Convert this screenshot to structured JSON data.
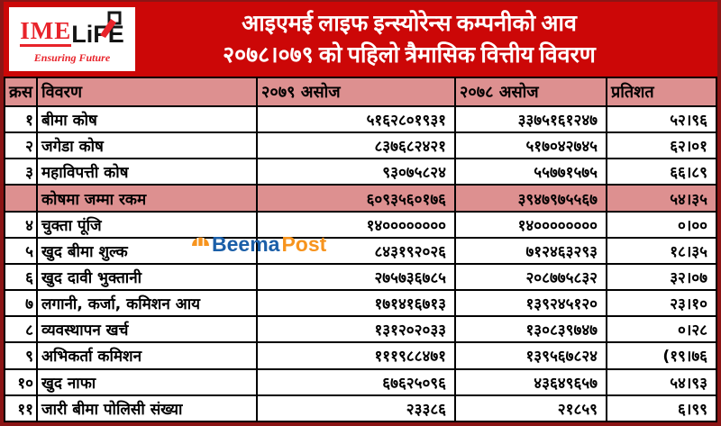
{
  "logo": {
    "ime": "IME",
    "life": "LiFE",
    "tagline": "Ensuring Future"
  },
  "banner": {
    "title_line1": "आइएमई लाइफ इन्स्योरेन्स कम्पनीको आव",
    "title_line2": "२०७८।०७९ को पहिलो त्रैमासिक वित्तीय विवरण"
  },
  "watermark": {
    "part1": "Beema",
    "part2": "Post"
  },
  "colors": {
    "banner_red": "#cc0707",
    "logo_red": "#e8232a",
    "frame_maroon": "#8b1515",
    "header_pink": "#dd9090",
    "highlight_pink": "#dd9090",
    "beema_blue": "#1b5fa8",
    "beema_orange": "#f7941e"
  },
  "table": {
    "headers": [
      "क्रस",
      "विवरण",
      "२०७९ असोज",
      "२०७८ असोज",
      "प्रतिशत"
    ],
    "rows": [
      {
        "sn": "१",
        "label": "बीमा कोष",
        "v2079": "५१६२८०१९३१",
        "v2078": "३३७५१६१२४७",
        "pct": "५२।९६",
        "highlight": false
      },
      {
        "sn": "२",
        "label": "जगेडा कोष",
        "v2079": "८३७६८२४२१",
        "v2078": "५१७०४२७४५",
        "pct": "६२।०१",
        "highlight": false
      },
      {
        "sn": "३",
        "label": "महाविपत्ती कोष",
        "v2079": "९३०७५८२४",
        "v2078": "५५७७१५७५",
        "pct": "६६।८९",
        "highlight": false
      },
      {
        "sn": "",
        "label": "कोषमा जम्मा रकम",
        "v2079": "६०९३५६०१७६",
        "v2078": "३९४७९७५५६७",
        "pct": "५४।३५",
        "highlight": true
      },
      {
        "sn": "४",
        "label": "चुक्ता पूंजि",
        "v2079": "१४००००००००",
        "v2078": "१४००००००००",
        "pct": "०।००",
        "highlight": false
      },
      {
        "sn": "५",
        "label": "खुद बीमा शुल्क",
        "v2079": "८४३१९२०२६",
        "v2078": "७१२४६३२९३",
        "pct": "१८।३५",
        "highlight": false
      },
      {
        "sn": "६",
        "label": "खुद दावी भुक्तानी",
        "v2079": "२७५७३६७८५",
        "v2078": "२०८७७५८३२",
        "pct": "३२।०७",
        "highlight": false
      },
      {
        "sn": "७",
        "label": "लगानी, कर्जा, कमिशन आय",
        "v2079": "१७१४१६७१३",
        "v2078": "१३९२४५१२०",
        "pct": "२३।१०",
        "highlight": false
      },
      {
        "sn": "८",
        "label": "व्यवस्थापन खर्च",
        "v2079": "१३१२०२०३३",
        "v2078": "१३०८३९७४७",
        "pct": "०।२८",
        "highlight": false
      },
      {
        "sn": "९",
        "label": "अभिकर्ता कमिशन",
        "v2079": "१११९८८४७१",
        "v2078": "१३९५६७८२४",
        "pct": "(१९।७६",
        "highlight": false
      },
      {
        "sn": "१०",
        "label": "खुद नाफा",
        "v2079": "६७६२५०९६",
        "v2078": "४३६४९६५७",
        "pct": "५४।९३",
        "highlight": false
      },
      {
        "sn": "११",
        "label": "जारी बीमा पोलिसी संख्या",
        "v2079": "२३३८६",
        "v2078": "२१८५९",
        "pct": "६।९९",
        "highlight": false
      }
    ]
  }
}
